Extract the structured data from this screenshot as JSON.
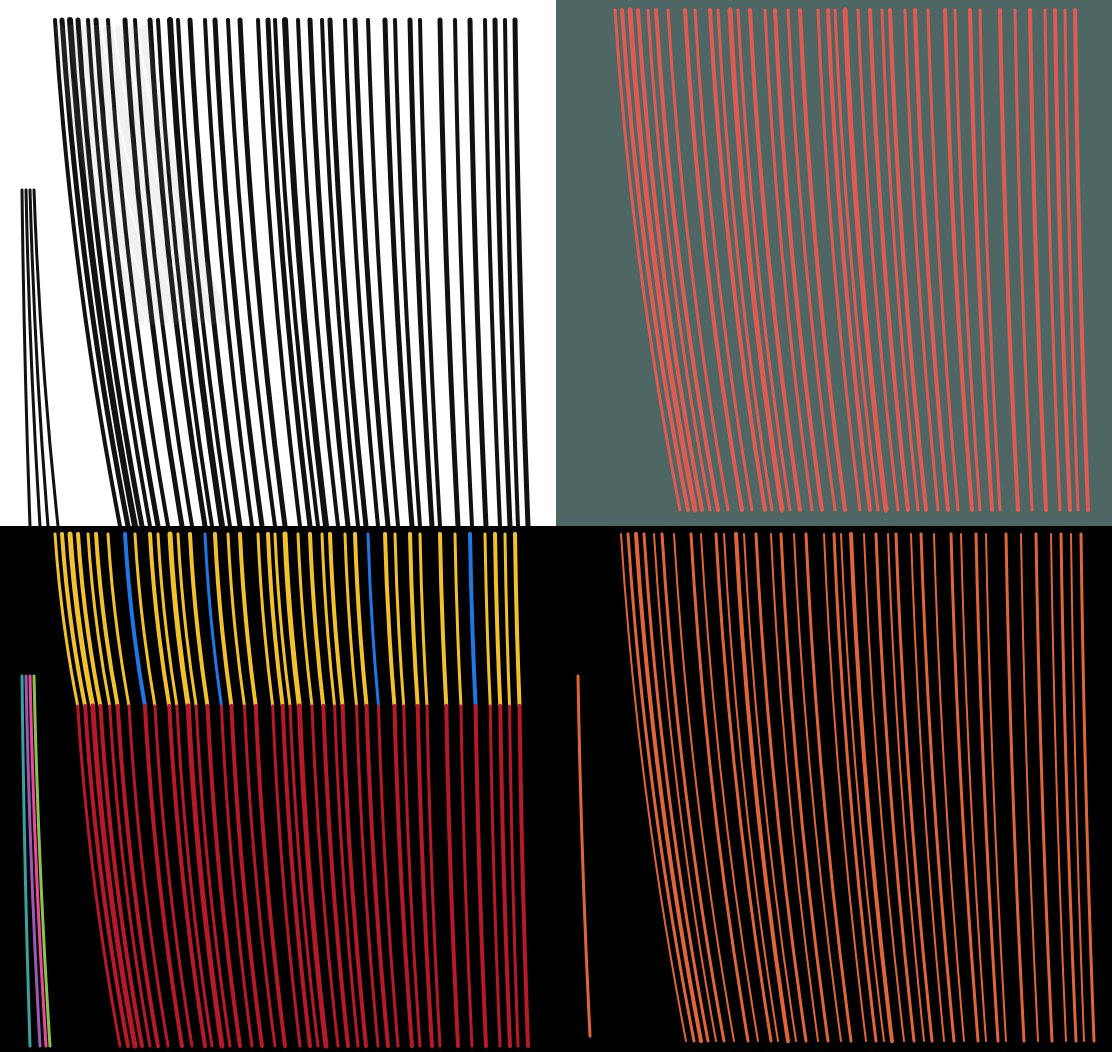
{
  "figure": {
    "panels": [
      {
        "id": "grayscale-kymograph",
        "description_role": "input"
      },
      {
        "id": "probability-overlay",
        "description_role": "prediction"
      },
      {
        "id": "instance-segmentation",
        "description_role": "instances"
      },
      {
        "id": "binary-segmentation",
        "description_role": "mask"
      }
    ]
  },
  "colors": {
    "tl_background": "#ffffff",
    "tl_track": "#111111",
    "tr_background": "#4e6764",
    "tr_track": "#ef5a50",
    "bl_background": "#000000",
    "br_background": "#000000",
    "br_track": "#e0653a",
    "instance_palette": [
      "#f2c12e",
      "#b5192a",
      "#1f77e4",
      "#c86dd7",
      "#2bbf7a",
      "#9b59b6",
      "#e74c9c",
      "#3aa0a0",
      "#8bc34a",
      "#5c3a2e"
    ]
  }
}
